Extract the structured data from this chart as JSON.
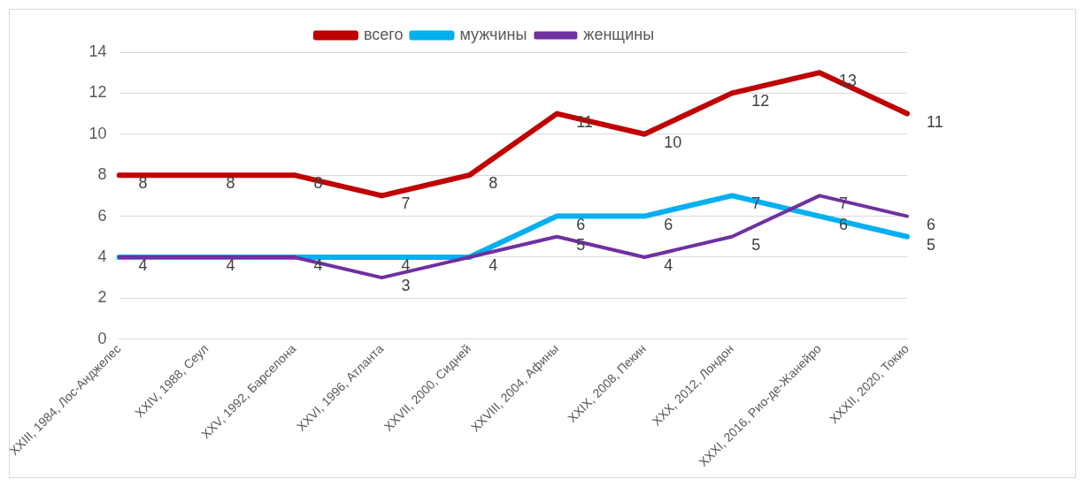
{
  "chart_data": {
    "type": "line",
    "categories": [
      "XXIII, 1984, Лос-Анджелес",
      "XXIV, 1988, Сеул",
      "XXV, 1992, Барселона",
      "XXVI, 1996, Атланта",
      "XXVII, 2000, Сидней",
      "XXVIII, 2004, Афины",
      "XXIX, 2008, Пекин",
      "XXX, 2012, Лондон",
      "XXXI, 2016, Рио-де-Жанейро",
      "XXXII, 2020, Токио"
    ],
    "series": [
      {
        "name": "всего",
        "color": "#c00000",
        "values": [
          8,
          8,
          8,
          7,
          8,
          11,
          10,
          12,
          13,
          11
        ]
      },
      {
        "name": "мужчины",
        "color": "#00b0f0",
        "values": [
          4,
          4,
          4,
          4,
          4,
          6,
          6,
          7,
          6,
          5
        ]
      },
      {
        "name": "женщины",
        "color": "#7030a0",
        "values": [
          4,
          4,
          4,
          3,
          4,
          5,
          4,
          5,
          7,
          6
        ],
        "value_labels": [
          null,
          null,
          null,
          "3",
          null,
          "5",
          "4",
          "5",
          "7",
          "6"
        ]
      }
    ],
    "ylim": [
      0,
      14
    ],
    "yticks": [
      0,
      2,
      4,
      6,
      8,
      10,
      12,
      14
    ],
    "grid": "y",
    "legend": "top",
    "data_labels": true,
    "marker": "none",
    "line_style": "solid"
  }
}
